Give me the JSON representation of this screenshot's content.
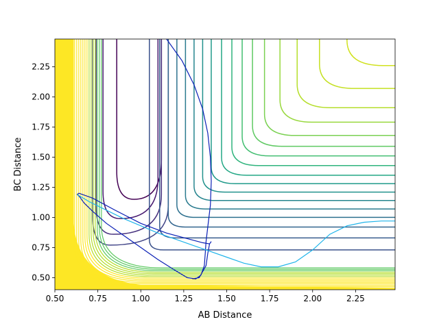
{
  "chart_data": {
    "type": "contour",
    "title": "",
    "xlabel": "AB Distance",
    "ylabel": "BC Distance",
    "xlim": [
      0.5,
      2.48
    ],
    "ylim": [
      0.4,
      2.48
    ],
    "xticks": [
      "0.50",
      "0.75",
      "1.00",
      "1.25",
      "1.50",
      "1.75",
      "2.00",
      "2.25"
    ],
    "yticks": [
      "0.50",
      "0.75",
      "1.00",
      "1.25",
      "1.50",
      "1.75",
      "2.00",
      "2.25"
    ],
    "grid": false,
    "legend": "none",
    "colormap": [
      "#440154",
      "#3b528b",
      "#21918c",
      "#5ec962",
      "#fde725"
    ],
    "contour_levels": [
      {
        "xmin": 0.86,
        "ymin": 1.23,
        "color": "#440154",
        "kind": "well"
      },
      {
        "xmin": 0.78,
        "ymin": 1.07,
        "color": "#46186f",
        "kind": "well"
      },
      {
        "xmin": 0.74,
        "ymin": 0.94,
        "color": "#46317e",
        "kind": "well"
      },
      {
        "xmin": 0.72,
        "ymin": 0.85,
        "color": "#414487",
        "kind": "well"
      },
      {
        "xmin": 1.05,
        "ymin": 0.73,
        "color": "#3b528b",
        "kind": "open"
      },
      {
        "xmin": 1.11,
        "ymin": 0.83,
        "color": "#375b8d",
        "kind": "open"
      },
      {
        "xmin": 1.16,
        "ymin": 0.92,
        "color": "#32658e",
        "kind": "open"
      },
      {
        "xmin": 1.21,
        "ymin": 1.0,
        "color": "#2d708e",
        "kind": "open"
      },
      {
        "xmin": 1.26,
        "ymin": 1.07,
        "color": "#297a8e",
        "kind": "open"
      },
      {
        "xmin": 1.31,
        "ymin": 1.14,
        "color": "#25848e",
        "kind": "open"
      },
      {
        "xmin": 1.36,
        "ymin": 1.21,
        "color": "#21918c",
        "kind": "open"
      },
      {
        "xmin": 1.41,
        "ymin": 1.28,
        "color": "#1f9a8a",
        "kind": "open"
      },
      {
        "xmin": 1.47,
        "ymin": 1.35,
        "color": "#22a785",
        "kind": "open"
      },
      {
        "xmin": 1.53,
        "ymin": 1.43,
        "color": "#2eb37c",
        "kind": "open"
      },
      {
        "xmin": 1.59,
        "ymin": 1.51,
        "color": "#42be71",
        "kind": "open"
      },
      {
        "xmin": 1.65,
        "ymin": 1.59,
        "color": "#5ec962",
        "kind": "open"
      },
      {
        "xmin": 1.72,
        "ymin": 1.68,
        "color": "#7ad151",
        "kind": "open"
      },
      {
        "xmin": 1.81,
        "ymin": 1.79,
        "color": "#98d83e",
        "kind": "open"
      },
      {
        "xmin": 1.91,
        "ymin": 1.91,
        "color": "#b5de2b",
        "kind": "open"
      },
      {
        "xmin": 2.04,
        "ymin": 2.07,
        "color": "#c4e021",
        "kind": "open"
      },
      {
        "xmin": 2.2,
        "ymin": 2.26,
        "color": "#d0e11c",
        "kind": "open"
      },
      {
        "xmin": 2.42,
        "ymin": 2.46,
        "color": "#e5e419",
        "kind": "open"
      }
    ],
    "series": [
      {
        "color": "#0a1fb5",
        "x": [
          1.15,
          1.24,
          1.31,
          1.36,
          1.39,
          1.405,
          1.41,
          1.405,
          1.39,
          1.38,
          1.375,
          1.37,
          1.35,
          1.32,
          1.27,
          1.2,
          1.1,
          1.0,
          0.9,
          0.8,
          0.72,
          0.67,
          0.645,
          0.63,
          0.64,
          0.72,
          0.85,
          1.0,
          1.15,
          1.28,
          1.36,
          1.4,
          1.41,
          1.4,
          1.39,
          1.38,
          1.34,
          1.3
        ],
        "y": [
          2.48,
          2.3,
          2.1,
          1.9,
          1.7,
          1.5,
          1.3,
          1.1,
          0.92,
          0.8,
          0.7,
          0.6,
          0.52,
          0.49,
          0.5,
          0.56,
          0.65,
          0.75,
          0.85,
          0.95,
          1.05,
          1.12,
          1.17,
          1.19,
          1.2,
          1.16,
          1.06,
          0.95,
          0.87,
          0.82,
          0.79,
          0.78,
          0.8,
          0.78,
          0.7,
          0.6,
          0.5,
          0.49
        ]
      },
      {
        "color": "#1fb4ea",
        "x": [
          0.63,
          0.7,
          0.8,
          0.9,
          1.0,
          1.1,
          1.2,
          1.3,
          1.4,
          1.5,
          1.6,
          1.7,
          1.8,
          1.9,
          2.0,
          2.1,
          2.2,
          2.3,
          2.4,
          2.48
        ],
        "y": [
          1.19,
          1.13,
          1.06,
          0.99,
          0.93,
          0.87,
          0.82,
          0.77,
          0.72,
          0.67,
          0.62,
          0.59,
          0.59,
          0.63,
          0.73,
          0.86,
          0.93,
          0.96,
          0.97,
          0.97
        ]
      }
    ]
  }
}
